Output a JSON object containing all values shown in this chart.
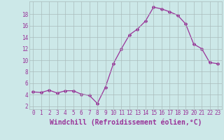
{
  "x": [
    0,
    1,
    2,
    3,
    4,
    5,
    6,
    7,
    8,
    9,
    10,
    11,
    12,
    13,
    14,
    15,
    16,
    17,
    18,
    19,
    20,
    21,
    22,
    23
  ],
  "y": [
    4.5,
    4.4,
    4.8,
    4.3,
    4.7,
    4.7,
    4.1,
    3.9,
    2.5,
    5.3,
    9.4,
    12.0,
    14.4,
    15.4,
    16.8,
    19.2,
    18.9,
    18.4,
    17.8,
    16.3,
    12.8,
    12.0,
    9.6,
    9.4
  ],
  "line_color": "#993399",
  "marker": "D",
  "marker_size": 2,
  "bg_color": "#cce8e8",
  "grid_color": "#aabcbc",
  "xlabel": "Windchill (Refroidissement éolien,°C)",
  "xlabel_fontsize": 7,
  "ylabel_ticks": [
    2,
    4,
    6,
    8,
    10,
    12,
    14,
    16,
    18
  ],
  "xlim": [
    -0.5,
    23.5
  ],
  "ylim": [
    1.5,
    20.2
  ],
  "xticks": [
    0,
    1,
    2,
    3,
    4,
    5,
    6,
    7,
    8,
    9,
    10,
    11,
    12,
    13,
    14,
    15,
    16,
    17,
    18,
    19,
    20,
    21,
    22,
    23
  ],
  "tick_fontsize": 5.5
}
